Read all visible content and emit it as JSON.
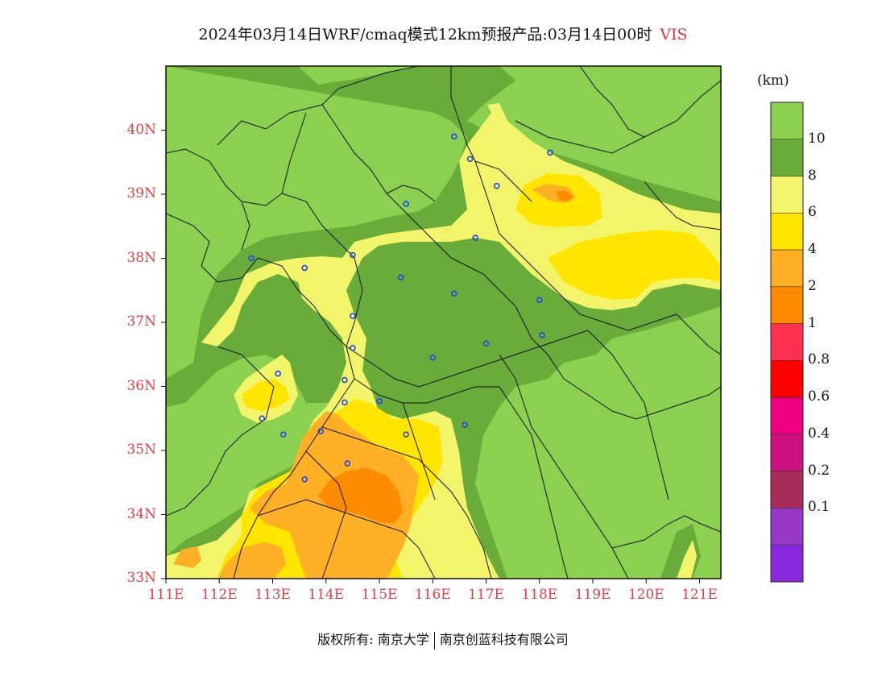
{
  "title": {
    "main": "2024年03月14日WRF/cmaq模式12km预报产品:03月14日00时",
    "variable": "VIS"
  },
  "unit": "(km)",
  "colors": {
    "gt10": "#8cd050",
    "c8_10": "#6aac3a",
    "c6_8": "#f2f56a",
    "c4_6": "#ffe500",
    "c2_4": "#ffb025",
    "c1_2": "#ff8c00",
    "boundary": "#111111",
    "station": "#2244ee",
    "axis_label": "#e04048"
  },
  "colorbar": {
    "colors": [
      "#8cd050",
      "#6aac3a",
      "#f2f56a",
      "#ffe500",
      "#ffb025",
      "#ff8c00",
      "#ff3050",
      "#ff0000",
      "#ee0080",
      "#cc1080",
      "#a82c5a",
      "#9838c8",
      "#8a28e0"
    ],
    "labels": [
      "10",
      "8",
      "6",
      "4",
      "2",
      "1",
      "0.8",
      "0.6",
      "0.4",
      "0.2",
      "0.1"
    ]
  },
  "axes": {
    "lat_labels": [
      "40N",
      "39N",
      "38N",
      "37N",
      "36N",
      "35N",
      "34N",
      "33N"
    ],
    "lat_values": [
      40,
      39,
      38,
      37,
      36,
      35,
      34,
      33
    ],
    "lon_labels": [
      "111E",
      "112E",
      "113E",
      "114E",
      "115E",
      "116E",
      "117E",
      "118E",
      "119E",
      "120E",
      "121E"
    ],
    "lon_values": [
      111,
      112,
      113,
      114,
      115,
      116,
      117,
      118,
      119,
      120,
      121
    ],
    "lon_range": [
      111,
      121.4
    ],
    "lat_range": [
      33,
      41
    ]
  },
  "stations": [
    [
      116.4,
      39.9
    ],
    [
      116.7,
      39.55
    ],
    [
      118.2,
      39.65
    ],
    [
      117.2,
      39.13
    ],
    [
      115.5,
      38.85
    ],
    [
      116.8,
      38.32
    ],
    [
      112.6,
      38.0
    ],
    [
      113.6,
      37.85
    ],
    [
      114.5,
      38.05
    ],
    [
      115.4,
      37.7
    ],
    [
      116.4,
      37.45
    ],
    [
      118.0,
      37.35
    ],
    [
      114.5,
      37.1
    ],
    [
      114.5,
      36.6
    ],
    [
      116.0,
      36.45
    ],
    [
      117.0,
      36.67
    ],
    [
      118.05,
      36.8
    ],
    [
      113.1,
      36.2
    ],
    [
      114.35,
      36.1
    ],
    [
      112.8,
      35.5
    ],
    [
      114.35,
      35.75
    ],
    [
      115.0,
      35.77
    ],
    [
      113.2,
      35.25
    ],
    [
      113.9,
      35.3
    ],
    [
      115.5,
      35.25
    ],
    [
      116.6,
      35.4
    ],
    [
      114.4,
      34.8
    ],
    [
      113.6,
      34.55
    ]
  ],
  "footer": {
    "left": "版权所有: 南京大学",
    "right": "南京创蓝科技有限公司"
  }
}
